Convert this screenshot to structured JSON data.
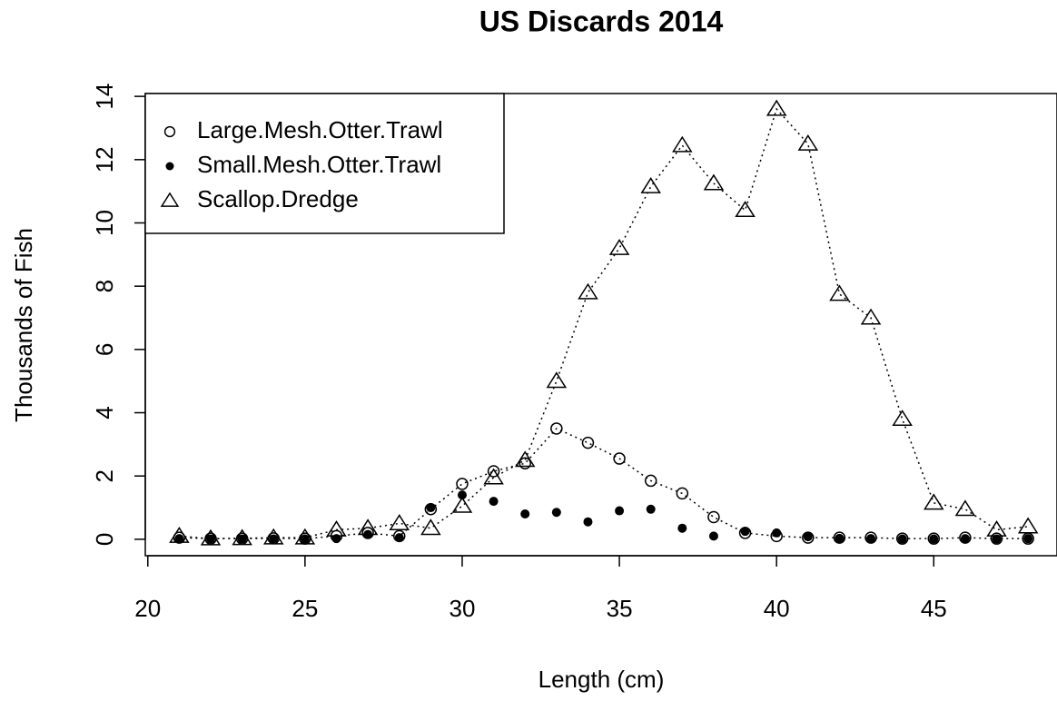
{
  "chart_data": {
    "type": "scatter",
    "title": "US Discards 2014",
    "x_label": "Length (cm)",
    "y_label": "Thousands of Fish",
    "x": [
      21,
      22,
      23,
      24,
      25,
      26,
      27,
      28,
      29,
      30,
      31,
      32,
      33,
      34,
      35,
      36,
      37,
      38,
      39,
      40,
      41,
      42,
      43,
      44,
      45,
      46,
      47,
      48
    ],
    "series": [
      {
        "name": "Large.Mesh.Otter.Trawl",
        "color": "#000000",
        "marker": "circle-open",
        "line": "dotted",
        "values": [
          0.05,
          0.02,
          0.02,
          0.03,
          0.02,
          0.1,
          0.2,
          0.1,
          0.95,
          1.75,
          2.15,
          2.4,
          3.5,
          3.05,
          2.55,
          1.85,
          1.45,
          0.7,
          0.2,
          0.1,
          0.05,
          0.05,
          0.05,
          0.02,
          0.02,
          0.05,
          0.02,
          0.02
        ]
      },
      {
        "name": "Small.Mesh.Otter.Trawl",
        "color": "#000000",
        "marker": "circle-filled",
        "line": "none",
        "values": [
          0.02,
          0.01,
          0.01,
          0.01,
          0.01,
          0.02,
          0.15,
          0.05,
          1.0,
          1.4,
          1.2,
          0.8,
          0.85,
          0.55,
          0.9,
          0.95,
          0.35,
          0.1,
          0.25,
          0.2,
          0.08,
          0.03,
          0.02,
          0.01,
          0.01,
          0.02,
          0.01,
          0.02
        ]
      },
      {
        "name": "Scallop.Dredge",
        "color": "#000000",
        "marker": "triangle-open",
        "line": "dotted",
        "values": [
          0.1,
          0.02,
          0.03,
          0.05,
          0.05,
          0.3,
          0.35,
          0.5,
          0.35,
          1.05,
          1.95,
          2.5,
          5.0,
          7.8,
          9.2,
          11.15,
          12.45,
          11.25,
          10.4,
          13.6,
          12.5,
          7.75,
          7.0,
          3.8,
          1.15,
          0.95,
          0.3,
          0.4
        ]
      }
    ],
    "xlim": [
      19.92,
      48.92
    ],
    "ylim": [
      -0.52,
      14.09
    ],
    "xticks": [
      20,
      25,
      30,
      35,
      40,
      45
    ],
    "yticks": [
      0,
      2,
      4,
      6,
      8,
      10,
      12,
      14
    ],
    "legend": "top-left"
  }
}
